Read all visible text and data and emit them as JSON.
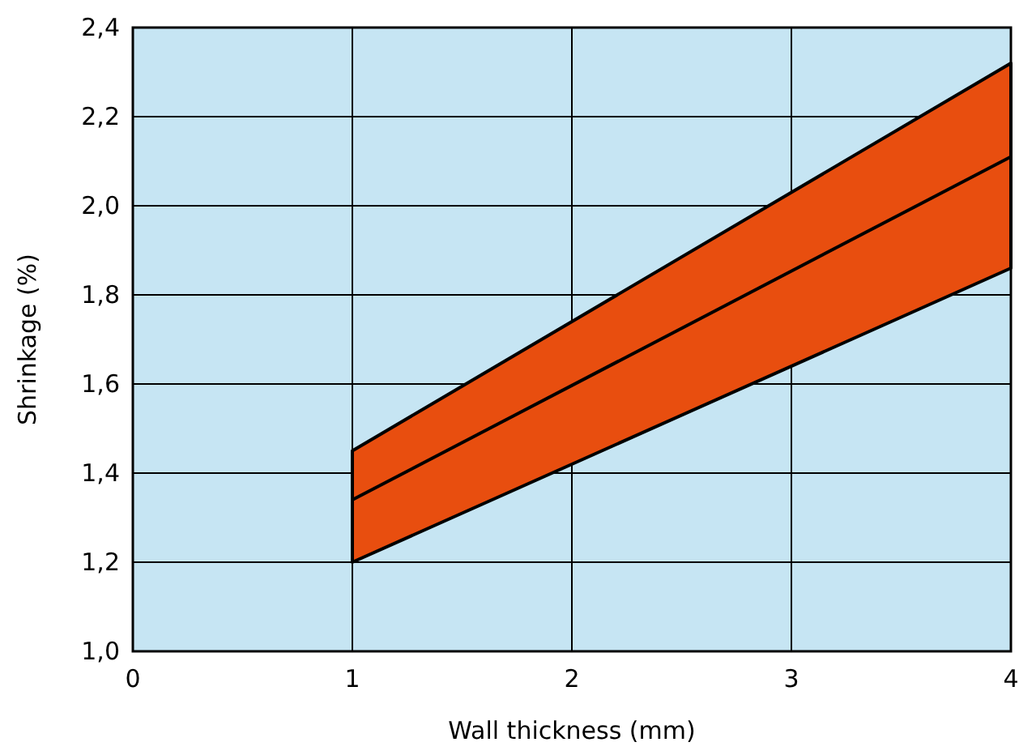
{
  "chart_data": {
    "type": "line",
    "xlabel": "Wall thickness (mm)",
    "ylabel": "Shrinkage (%)",
    "x": [
      1,
      4
    ],
    "series": [
      {
        "color": "#000000",
        "values": [
          1.34,
          2.11
        ],
        "lower": [
          1.2,
          1.86
        ],
        "upper": [
          1.45,
          2.32
        ]
      }
    ],
    "xlim": [
      0,
      4
    ],
    "xticks": [
      0,
      1,
      2,
      3,
      4
    ],
    "ylim": [
      1.0,
      2.4
    ],
    "yticks": [
      {
        "value": 1.0,
        "label": "1,0"
      },
      {
        "value": 1.2,
        "label": "1,2"
      },
      {
        "value": 1.4,
        "label": "1,4"
      },
      {
        "value": 1.6,
        "label": "1,6"
      },
      {
        "value": 1.8,
        "label": "1,8"
      },
      {
        "value": 2.0,
        "label": "2,0"
      },
      {
        "value": 2.2,
        "label": "2,2"
      },
      {
        "value": 2.4,
        "label": "2,4"
      }
    ],
    "grid": true,
    "marker": "none",
    "line_style": "solid"
  }
}
